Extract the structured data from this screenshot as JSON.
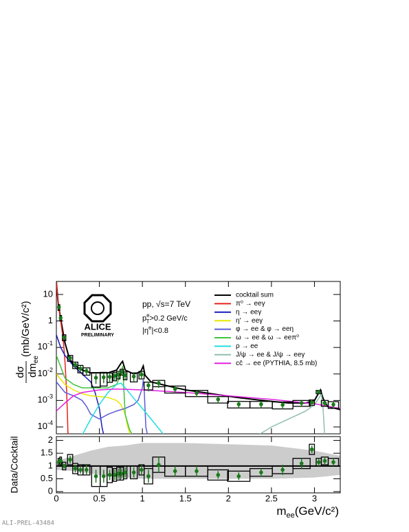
{
  "chart_data": [
    {
      "type": "line",
      "log_y": true,
      "y_label_num": "dσ",
      "y_label_den": "dm",
      "y_label_den_sub": "ee",
      "y_label_unit": "(mb/GeV/c²)",
      "logo_text": "ALICE",
      "logo_sub": "PRELIMINARY",
      "annotation_system": "pp, √s=7 TeV",
      "pt_label": "p",
      "pt_sup": "e",
      "pt_sub": "T",
      "pt_cut": ">0.2 GeV/c",
      "eta_pre": "|η",
      "eta_sup": "e",
      "eta_cut": "|<0.8",
      "xlim": [
        0,
        3.3
      ],
      "ylim": [
        5.5e-05,
        31
      ],
      "yticks": [
        10,
        1,
        {
          "value": 0.1,
          "label": "10",
          "exponent": "-1"
        },
        {
          "value": 0.01,
          "label": "10",
          "exponent": "-2"
        },
        {
          "value": 0.001,
          "label": "10",
          "exponent": "-3"
        },
        {
          "value": 0.0001,
          "label": "10",
          "exponent": "-4"
        }
      ],
      "xticks": [
        0,
        0.5,
        1,
        1.5,
        2,
        2.5,
        3
      ],
      "series": [
        {
          "name": "cocktail sum",
          "color": "#000000",
          "x": [
            0.0,
            0.02,
            0.05,
            0.1,
            0.15,
            0.2,
            0.3,
            0.4,
            0.5,
            0.6,
            0.7,
            0.75,
            0.77,
            0.8,
            0.9,
            0.98,
            1.01,
            1.03,
            1.1,
            1.3,
            1.5,
            1.8,
            2.1,
            2.4,
            2.7,
            2.9,
            3.0,
            3.07,
            3.1,
            3.15,
            3.3
          ],
          "values": [
            30,
            5,
            1.2,
            0.15,
            0.04,
            0.022,
            0.014,
            0.011,
            0.011,
            0.011,
            0.014,
            0.025,
            0.03,
            0.014,
            0.01,
            0.012,
            0.02,
            0.009,
            0.005,
            0.0035,
            0.0025,
            0.0018,
            0.0013,
            0.001,
            0.0008,
            0.0008,
            0.001,
            0.0025,
            0.0012,
            0.0006,
            0.00045
          ]
        },
        {
          "name": "π⁰ → eeγ",
          "color": "#e8201c",
          "x": [
            0,
            0.02,
            0.05,
            0.08,
            0.1,
            0.12,
            0.13,
            0.135
          ],
          "values": [
            30,
            5,
            1,
            0.2,
            0.03,
            0.002,
            0.0002,
            5e-05
          ]
        },
        {
          "name": "η → eeγ",
          "color": "#1a1ab8",
          "x": [
            0,
            0.05,
            0.1,
            0.2,
            0.3,
            0.4,
            0.45,
            0.5,
            0.53,
            0.55
          ],
          "values": [
            0.3,
            0.1,
            0.05,
            0.02,
            0.01,
            0.005,
            0.002,
            0.0005,
            0.0001,
            5e-05
          ]
        },
        {
          "name": "η' → eeγ",
          "color": "#e8e800",
          "x": [
            0,
            0.1,
            0.2,
            0.3,
            0.4,
            0.5,
            0.6,
            0.7,
            0.75,
            0.8,
            0.83,
            0.86
          ],
          "values": [
            0.01,
            0.004,
            0.0025,
            0.0018,
            0.0015,
            0.0014,
            0.0013,
            0.001,
            0.0007,
            0.0003,
            0.0001,
            5e-05
          ]
        },
        {
          "name": "φ → ee & φ → eeη",
          "color": "#5a5ad8",
          "x": [
            0,
            0.1,
            0.2,
            0.3,
            0.35,
            0.4,
            0.5,
            0.6,
            0.7,
            0.8,
            0.9,
            0.95,
            1.0,
            1.01,
            1.02,
            1.04,
            1.06
          ],
          "values": [
            0.005,
            0.002,
            0.0015,
            0.001,
            0.0006,
            0.0003,
            0.0002,
            0.0003,
            0.0004,
            0.0005,
            0.0007,
            0.001,
            0.003,
            0.006,
            0.003,
            0.0001,
            5e-05
          ]
        },
        {
          "name": "ω → ee & ω → eeπ⁰",
          "color": "#3cc43c",
          "x": [
            0,
            0.1,
            0.2,
            0.3,
            0.4,
            0.5,
            0.6,
            0.7,
            0.75,
            0.77,
            0.78,
            0.8,
            0.85,
            0.9
          ],
          "values": [
            0.05,
            0.007,
            0.004,
            0.003,
            0.003,
            0.003,
            0.003,
            0.004,
            0.01,
            0.02,
            0.005,
            0.0003,
            8e-05,
            4e-05
          ]
        },
        {
          "name": "ρ → ee",
          "color": "#22dddd",
          "x": [
            0.3,
            0.4,
            0.5,
            0.6,
            0.7,
            0.75,
            0.8,
            0.9,
            1.0,
            1.1,
            1.2,
            1.25
          ],
          "values": [
            5e-05,
            0.0002,
            0.0007,
            0.002,
            0.004,
            0.0045,
            0.003,
            0.0012,
            0.0005,
            0.0002,
            8e-05,
            5e-05
          ]
        },
        {
          "name": "J/ψ → ee & J/ψ → eeγ",
          "color": "#8fbfaa",
          "x": [
            2.3,
            2.5,
            2.7,
            2.9,
            3.0,
            3.05,
            3.08,
            3.1,
            3.12
          ],
          "values": [
            4e-05,
            0.0001,
            0.0002,
            0.0004,
            0.0007,
            0.0012,
            0.0018,
            0.0005,
            4e-05
          ]
        },
        {
          "name": "cc̄ → ee (PYTHIA, 8.5 mb)",
          "color": "#e020e0",
          "x": [
            0,
            0.1,
            0.2,
            0.3,
            0.5,
            0.7,
            1.0,
            1.5,
            2.0,
            2.5,
            3.0,
            3.3
          ],
          "values": [
            0.0004,
            0.0008,
            0.0015,
            0.002,
            0.0025,
            0.0027,
            0.0025,
            0.002,
            0.0015,
            0.0011,
            0.00075,
            0.0005
          ]
        }
      ],
      "points": {
        "color": "#1a7a1a",
        "x": [
          0.03,
          0.05,
          0.09,
          0.16,
          0.22,
          0.28,
          0.35,
          0.46,
          0.55,
          0.62,
          0.68,
          0.72,
          0.76,
          0.8,
          0.9,
          0.99,
          1.07,
          1.19,
          1.38,
          1.63,
          1.88,
          2.12,
          2.38,
          2.63,
          2.85,
          2.97,
          3.05,
          3.12,
          3.22
        ],
        "x_halfwidths": [
          0.01,
          0.01,
          0.02,
          0.03,
          0.03,
          0.03,
          0.04,
          0.05,
          0.04,
          0.03,
          0.02,
          0.02,
          0.02,
          0.02,
          0.04,
          0.03,
          0.05,
          0.07,
          0.12,
          0.13,
          0.12,
          0.13,
          0.13,
          0.12,
          0.1,
          0.03,
          0.03,
          0.04,
          0.06
        ],
        "values": [
          3.3,
          1.3,
          0.24,
          0.04,
          0.022,
          0.016,
          0.013,
          0.0072,
          0.0075,
          0.0078,
          0.0085,
          0.0095,
          0.012,
          0.009,
          0.008,
          0.0095,
          0.0037,
          0.0045,
          0.0027,
          0.0019,
          0.0011,
          0.00072,
          0.00072,
          0.00068,
          0.0008,
          0.00085,
          0.0021,
          0.0008,
          0.0007
        ],
        "errors": [
          0.4,
          0.2,
          0.04,
          0.008,
          0.005,
          0.004,
          0.004,
          0.003,
          0.003,
          0.003,
          0.003,
          0.003,
          0.003,
          0.003,
          0.003,
          0.003,
          0.0015,
          0.0015,
          0.0008,
          0.0005,
          0.0003,
          0.0002,
          0.0002,
          0.0002,
          0.0002,
          0.0002,
          0.0003,
          0.0002,
          0.0002
        ],
        "sys": [
          0.8,
          0.3,
          0.06,
          0.01,
          0.006,
          0.005,
          0.004,
          0.004,
          0.004,
          0.003,
          0.003,
          0.003,
          0.003,
          0.003,
          0.003,
          0.003,
          0.0012,
          0.0012,
          0.0008,
          0.0005,
          0.0003,
          0.0002,
          0.0002,
          0.0002,
          0.0002,
          0.0002,
          0.0003,
          0.0002,
          0.0002
        ]
      }
    },
    {
      "type": "scatter",
      "y_label": "Data/Cocktail",
      "x_label": "m",
      "x_label_sub": "ee",
      "x_label_unit": "(GeV/c²)",
      "footer": "ALI-PREL-43484",
      "xlim": [
        0,
        3.3
      ],
      "ylim": [
        -0.05,
        2.15
      ],
      "yticks": [
        0,
        0.5,
        1,
        1.5,
        2
      ],
      "xticks": [
        0,
        0.5,
        1,
        1.5,
        2,
        2.5,
        3
      ],
      "color": "#1a7a1a",
      "x": [
        0.03,
        0.05,
        0.09,
        0.16,
        0.22,
        0.28,
        0.35,
        0.46,
        0.55,
        0.62,
        0.68,
        0.72,
        0.76,
        0.8,
        0.9,
        0.99,
        1.07,
        1.19,
        1.38,
        1.63,
        1.88,
        2.12,
        2.38,
        2.63,
        2.85,
        2.97,
        3.05,
        3.12,
        3.22
      ],
      "x_halfwidths": [
        0.01,
        0.01,
        0.02,
        0.03,
        0.03,
        0.03,
        0.04,
        0.05,
        0.04,
        0.03,
        0.02,
        0.02,
        0.02,
        0.02,
        0.04,
        0.03,
        0.05,
        0.07,
        0.12,
        0.13,
        0.12,
        0.13,
        0.13,
        0.12,
        0.1,
        0.03,
        0.03,
        0.04,
        0.06
      ],
      "values": [
        1.15,
        1.2,
        1.0,
        1.25,
        0.9,
        0.85,
        0.85,
        0.6,
        0.6,
        0.65,
        0.65,
        0.7,
        0.7,
        0.75,
        0.75,
        0.85,
        0.6,
        1.05,
        0.8,
        0.8,
        0.65,
        0.6,
        0.75,
        0.85,
        1.1,
        1.65,
        1.15,
        1.2,
        1.15
      ],
      "errors": [
        0.1,
        0.1,
        0.1,
        0.15,
        0.15,
        0.15,
        0.2,
        0.25,
        0.25,
        0.2,
        0.2,
        0.2,
        0.2,
        0.2,
        0.2,
        0.2,
        0.25,
        0.3,
        0.2,
        0.2,
        0.15,
        0.15,
        0.15,
        0.2,
        0.2,
        0.15,
        0.15,
        0.15,
        0.15
      ],
      "sys": [
        0.15,
        0.15,
        0.15,
        0.2,
        0.2,
        0.2,
        0.2,
        0.4,
        0.4,
        0.3,
        0.25,
        0.25,
        0.25,
        0.25,
        0.25,
        0.2,
        0.3,
        0.3,
        0.2,
        0.2,
        0.2,
        0.2,
        0.15,
        0.15,
        0.2,
        0.2,
        0.15,
        0.15,
        0.15
      ],
      "band": {
        "color": "#cccccc",
        "x": [
          0,
          0.2,
          0.4,
          0.6,
          0.8,
          1.0,
          1.5,
          2,
          2.5,
          3,
          3.3
        ],
        "high": [
          1.2,
          1.4,
          1.6,
          1.75,
          1.8,
          1.9,
          1.9,
          1.85,
          1.8,
          1.6,
          1.4
        ],
        "low": [
          0.85,
          0.8,
          0.7,
          0.6,
          0.55,
          0.5,
          0.5,
          0.5,
          0.5,
          0.55,
          0.65
        ]
      }
    }
  ]
}
